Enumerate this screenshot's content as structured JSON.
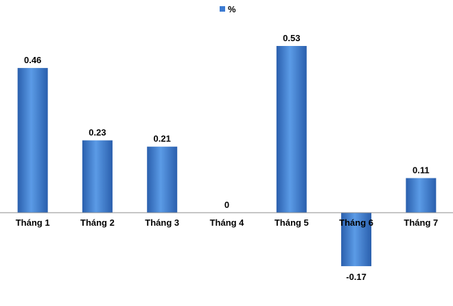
{
  "chart_data": {
    "type": "bar",
    "categories": [
      "Tháng 1",
      "Tháng 2",
      "Tháng 3",
      "Tháng 4",
      "Tháng 5",
      "Tháng 6",
      "Tháng 7"
    ],
    "series": [
      {
        "name": "%",
        "values": [
          0.46,
          0.23,
          0.21,
          0,
          0.53,
          -0.17,
          0.11
        ],
        "labels": [
          "0.46",
          "0.23",
          "0.21",
          "0",
          "0.53",
          "-0.17",
          "0.11"
        ]
      }
    ],
    "title": "",
    "xlabel": "",
    "ylabel": "",
    "ylim": [
      -0.17,
      0.53
    ],
    "grid": false,
    "legend": "top-center",
    "colors": {
      "bar_top": "#5B9BE6",
      "bar_mid": "#3C7BD2",
      "bar_bottom": "#2A5FAD",
      "legend_swatch": "#3C7BD2",
      "axis": "#8C8C8C"
    }
  }
}
